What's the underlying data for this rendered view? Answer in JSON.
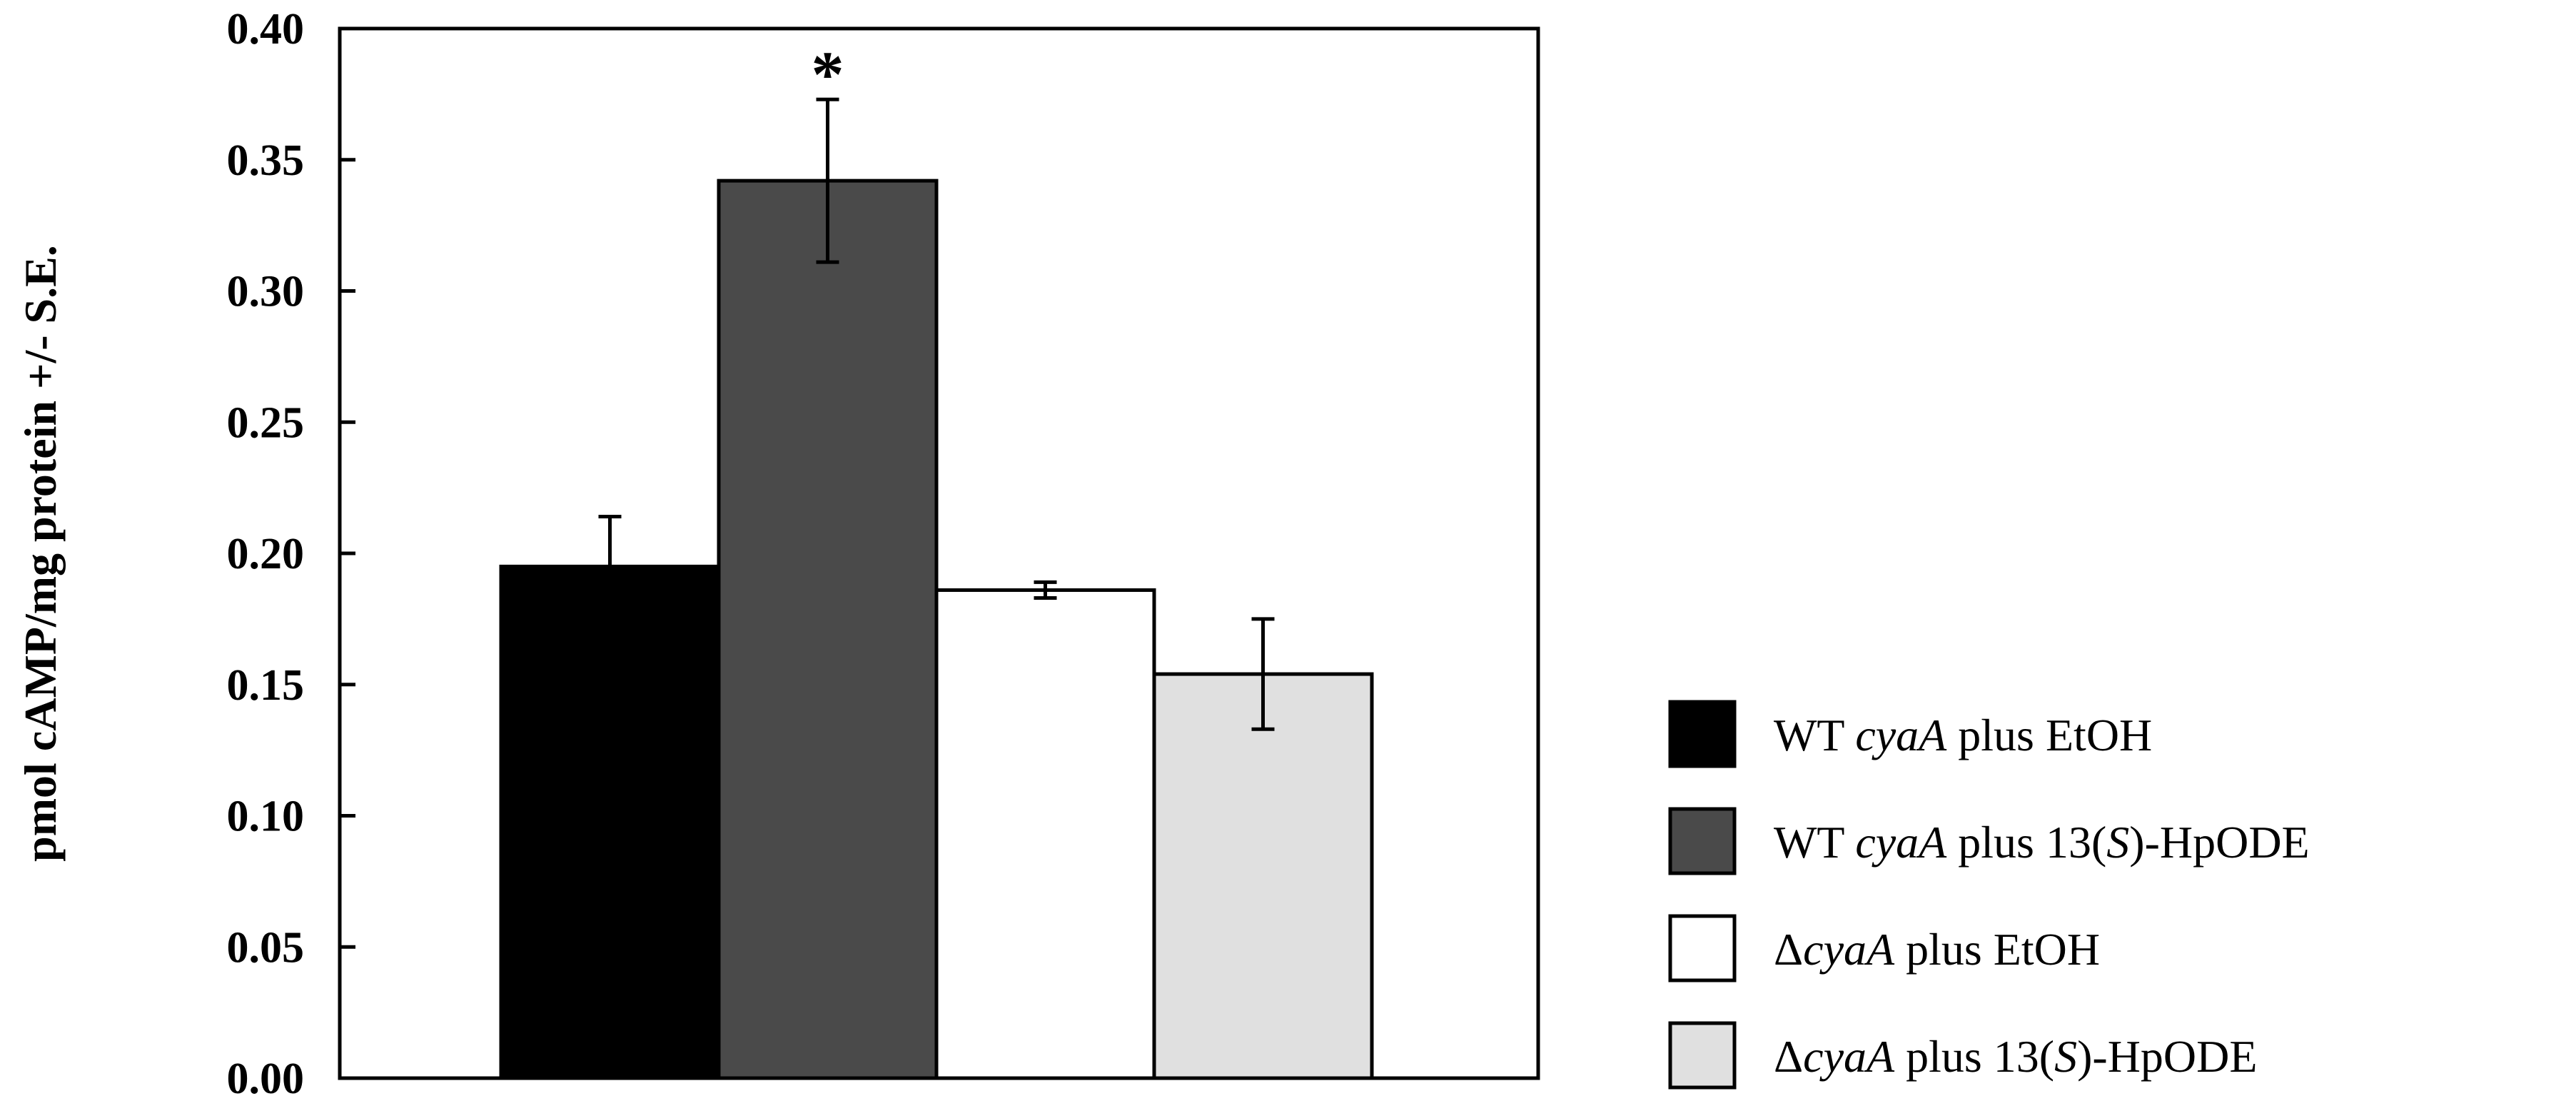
{
  "chart_data": {
    "type": "bar",
    "title": "",
    "xlabel": "",
    "ylabel": "pmol cAMP/mg protein +/- S.E.",
    "ylim": [
      0,
      0.4
    ],
    "yticks": [
      "0.00",
      "0.05",
      "0.10",
      "0.15",
      "0.20",
      "0.25",
      "0.30",
      "0.35",
      "0.40"
    ],
    "grid": false,
    "legend_position": "bottom-right",
    "bars": [
      {
        "value": 0.195,
        "error": 0.019,
        "color": "#000000",
        "annotation": ""
      },
      {
        "value": 0.342,
        "error": 0.031,
        "color": "#4a4a4a",
        "annotation": "*"
      },
      {
        "value": 0.186,
        "error": 0.003,
        "color": "#ffffff",
        "annotation": ""
      },
      {
        "value": 0.154,
        "error": 0.021,
        "color": "#e0e0e0",
        "annotation": ""
      }
    ],
    "legend": [
      {
        "prefix": "WT ",
        "italic": "cyaA",
        "rest": " plus EtOH",
        "color": "#000000"
      },
      {
        "prefix": "WT ",
        "italic": "cyaA",
        "rest": " plus 13(",
        "italic2": "S",
        "rest2": ")-HpODE",
        "color": "#4a4a4a"
      },
      {
        "prefix": "Δ",
        "italic": "cyaA",
        "rest": " plus EtOH",
        "color": "#ffffff"
      },
      {
        "prefix": "Δ",
        "italic": "cyaA",
        "rest": " plus 13(",
        "italic2": "S",
        "rest2": ")-HpODE",
        "color": "#e0e0e0"
      }
    ]
  }
}
